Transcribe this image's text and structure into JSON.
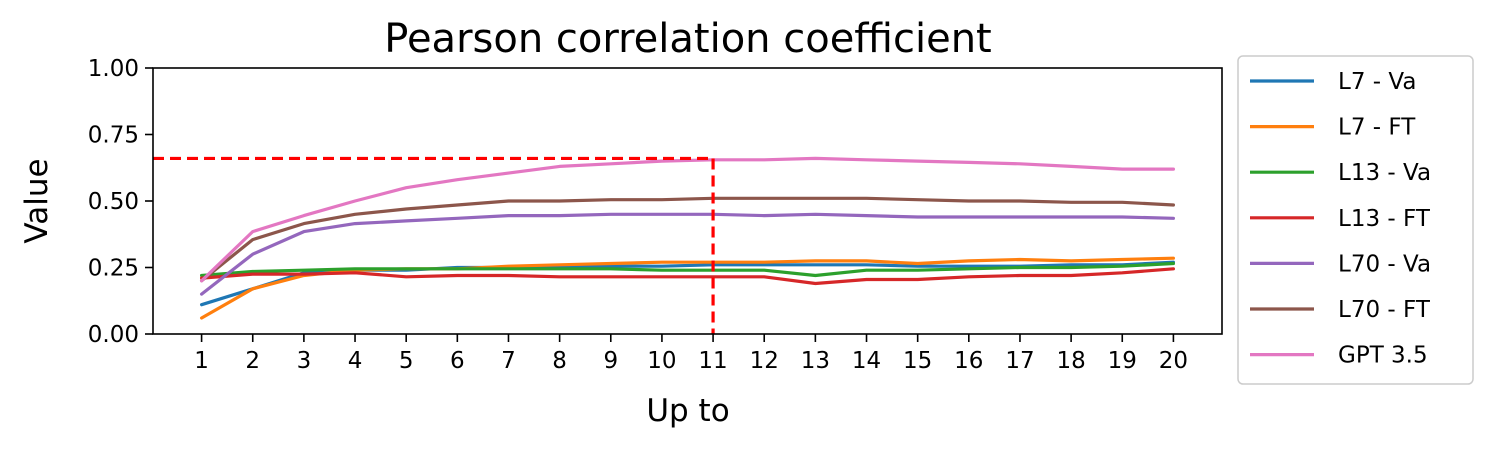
{
  "chart_data": {
    "type": "line",
    "title": "Pearson correlation coefficient",
    "xlabel": "Up to",
    "ylabel": "Value",
    "x": [
      1,
      2,
      3,
      4,
      5,
      6,
      7,
      8,
      9,
      10,
      11,
      12,
      13,
      14,
      15,
      16,
      17,
      18,
      19,
      20
    ],
    "xticks": [
      "1",
      "2",
      "3",
      "4",
      "5",
      "6",
      "7",
      "8",
      "9",
      "10",
      "11",
      "12",
      "13",
      "14",
      "15",
      "16",
      "17",
      "18",
      "19",
      "20"
    ],
    "ylim": [
      0,
      1
    ],
    "yticks": [
      "0.00",
      "0.25",
      "0.50",
      "0.75",
      "1.00"
    ],
    "grid": false,
    "legend_placement": "outside right",
    "series": [
      {
        "name": "L7 - Va",
        "color": "#1f77b4",
        "values": [
          0.11,
          0.17,
          0.23,
          0.24,
          0.24,
          0.25,
          0.25,
          0.25,
          0.255,
          0.255,
          0.26,
          0.26,
          0.26,
          0.26,
          0.255,
          0.255,
          0.255,
          0.26,
          0.26,
          0.27
        ]
      },
      {
        "name": "L7 - FT",
        "color": "#ff7f0e",
        "values": [
          0.06,
          0.17,
          0.22,
          0.24,
          0.245,
          0.245,
          0.255,
          0.26,
          0.265,
          0.27,
          0.27,
          0.27,
          0.275,
          0.275,
          0.265,
          0.275,
          0.28,
          0.275,
          0.28,
          0.285
        ]
      },
      {
        "name": "L13 - Va",
        "color": "#2ca02c",
        "values": [
          0.22,
          0.235,
          0.24,
          0.245,
          0.245,
          0.245,
          0.245,
          0.245,
          0.245,
          0.24,
          0.24,
          0.24,
          0.22,
          0.24,
          0.24,
          0.245,
          0.25,
          0.25,
          0.255,
          0.265
        ]
      },
      {
        "name": "L13 - FT",
        "color": "#d62728",
        "values": [
          0.21,
          0.225,
          0.225,
          0.23,
          0.215,
          0.22,
          0.22,
          0.215,
          0.215,
          0.215,
          0.215,
          0.215,
          0.19,
          0.205,
          0.205,
          0.215,
          0.22,
          0.22,
          0.23,
          0.245
        ]
      },
      {
        "name": "L70 - Va",
        "color": "#9467bd",
        "values": [
          0.15,
          0.3,
          0.385,
          0.415,
          0.425,
          0.435,
          0.445,
          0.445,
          0.45,
          0.45,
          0.45,
          0.445,
          0.45,
          0.445,
          0.44,
          0.44,
          0.44,
          0.44,
          0.44,
          0.435
        ]
      },
      {
        "name": "L70 - FT",
        "color": "#8c564b",
        "values": [
          0.2,
          0.355,
          0.415,
          0.45,
          0.47,
          0.485,
          0.5,
          0.5,
          0.505,
          0.505,
          0.51,
          0.51,
          0.51,
          0.51,
          0.505,
          0.5,
          0.5,
          0.495,
          0.495,
          0.485
        ]
      },
      {
        "name": "GPT 3.5",
        "color": "#e377c2",
        "values": [
          0.2,
          0.385,
          0.445,
          0.5,
          0.55,
          0.58,
          0.605,
          0.63,
          0.64,
          0.65,
          0.655,
          0.655,
          0.66,
          0.655,
          0.65,
          0.645,
          0.64,
          0.63,
          0.62,
          0.62
        ]
      }
    ],
    "reference_lines": {
      "color": "#ff0000",
      "style": "dashed",
      "y_value": 0.66,
      "x_value": 11
    }
  }
}
